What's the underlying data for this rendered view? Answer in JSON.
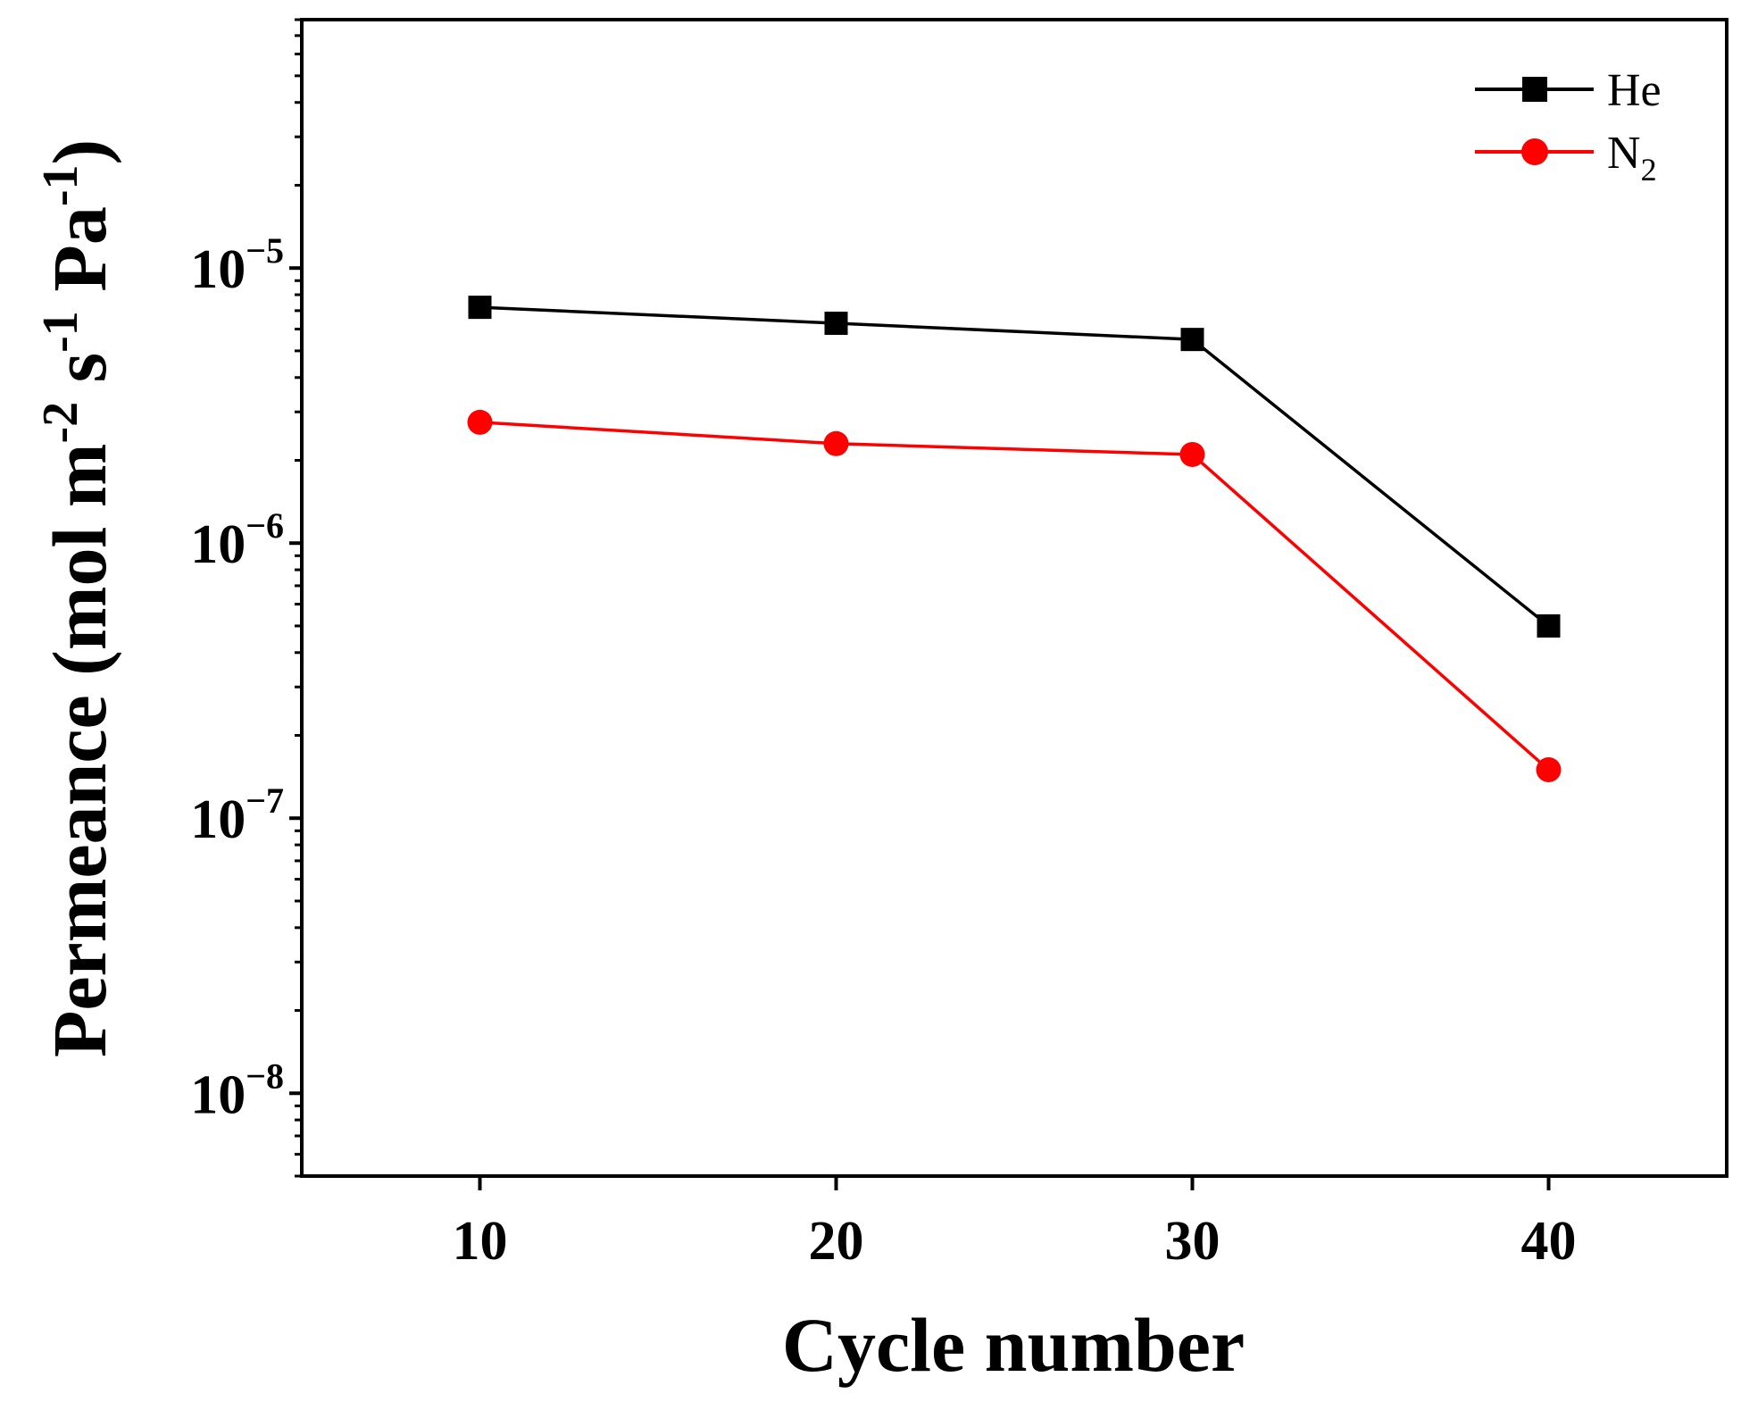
{
  "chart_data": {
    "type": "line",
    "title": "",
    "xlabel": "Cycle number",
    "ylabel": {
      "base": "Permeance (mol m",
      "sup1": "-2",
      "mid1": " s",
      "sup2": "-1",
      "mid2": " Pa",
      "sup3": "-1",
      "tail": ")"
    },
    "yscale": "log",
    "xlim": [
      5,
      45
    ],
    "ylim": [
      5e-09,
      8e-05
    ],
    "x": [
      10,
      20,
      30,
      40
    ],
    "x_tick_labels": [
      "10",
      "20",
      "30",
      "40"
    ],
    "y_ticks": [
      {
        "value": 1e-05,
        "base": "10",
        "exp": "−5"
      },
      {
        "value": 1e-06,
        "base": "10",
        "exp": "−6"
      },
      {
        "value": 1e-07,
        "base": "10",
        "exp": "−7"
      },
      {
        "value": 1e-08,
        "base": "10",
        "exp": "−8"
      }
    ],
    "series": [
      {
        "name": "He",
        "name_sub": "",
        "marker": "square",
        "color": "#000000",
        "values": [
          7.2e-06,
          6.3e-06,
          5.5e-06,
          5e-07
        ]
      },
      {
        "name": "N",
        "name_sub": "2",
        "marker": "circle",
        "color": "#ff0000",
        "values": [
          2.75e-06,
          2.3e-06,
          2.1e-06,
          1.5e-07
        ]
      }
    ],
    "legend_position": "top-right",
    "grid": false
  }
}
